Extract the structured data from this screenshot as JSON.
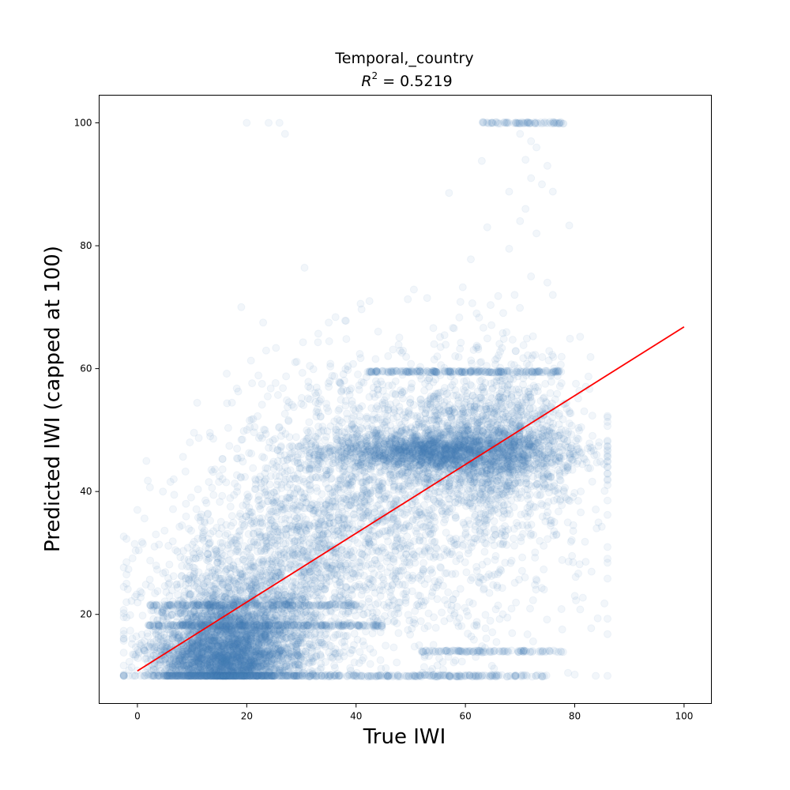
{
  "chart_data": {
    "type": "scatter",
    "title": "Temporal,_country",
    "subtitle_prefix": "R",
    "subtitle_exp": "2",
    "subtitle_value": " = 0.5219",
    "xlabel": "True IWI",
    "ylabel": "Predicted IWI (capped at 100)",
    "xlim": [
      -7,
      105
    ],
    "ylim": [
      5.5,
      104.5
    ],
    "xticks": [
      0,
      20,
      40,
      60,
      80,
      100
    ],
    "yticks": [
      20,
      40,
      60,
      80,
      100
    ],
    "grid": false,
    "legend": "none",
    "point_color": "#4682b4",
    "point_alpha": 0.07,
    "fit_line": {
      "color": "#ff0000",
      "x": [
        0,
        100
      ],
      "y": [
        10.8,
        66.8
      ]
    },
    "point_clusters": [
      {
        "x_center": 17,
        "x_spread": 7,
        "y_center": 15,
        "y_spread": 4.5,
        "count": 2500
      },
      {
        "x_center": 14,
        "x_spread": 6,
        "y_center": 12,
        "y_spread": 2,
        "count": 900
      },
      {
        "x_center": 20,
        "x_spread": 9,
        "y_center": 22,
        "y_spread": 7,
        "count": 900
      },
      {
        "x_center": 32,
        "x_spread": 10,
        "y_center": 33,
        "y_spread": 10,
        "count": 1000
      },
      {
        "x_center": 55,
        "x_spread": 10,
        "y_center": 46.5,
        "y_spread": 1.5,
        "count": 1400
      },
      {
        "x_center": 60,
        "x_spread": 11,
        "y_center": 47,
        "y_spread": 5,
        "count": 1400
      },
      {
        "x_center": 48,
        "x_spread": 14,
        "y_center": 40,
        "y_spread": 12,
        "count": 1200
      },
      {
        "x_center": 68,
        "x_spread": 6,
        "y_center": 48,
        "y_spread": 8,
        "count": 600
      },
      {
        "x_center": 45,
        "x_spread": 18,
        "y_center": 25,
        "y_spread": 10,
        "count": 400
      }
    ],
    "horizontal_bands": [
      {
        "x_min": 2,
        "x_max": 45,
        "y": 18.2,
        "count": 300
      },
      {
        "x_min": 2,
        "x_max": 40,
        "y": 21.5,
        "count": 200
      },
      {
        "x_min": 42,
        "x_max": 78,
        "y": 59.5,
        "count": 250
      },
      {
        "x_min": 52,
        "x_max": 78,
        "y": 14,
        "count": 120
      },
      {
        "x_min": 30,
        "x_max": 75,
        "y": 10,
        "count": 200
      },
      {
        "x_min": 63,
        "x_max": 78,
        "y": 100,
        "count": 80
      }
    ],
    "outlier_points": [
      [
        20,
        100
      ],
      [
        24,
        100
      ],
      [
        26,
        100
      ],
      [
        27,
        98.2
      ],
      [
        70,
        98.2
      ],
      [
        72,
        97
      ],
      [
        73,
        96
      ],
      [
        71,
        94
      ],
      [
        63,
        93.8
      ],
      [
        75,
        93
      ],
      [
        72,
        91
      ],
      [
        74,
        90
      ],
      [
        76,
        88.8
      ],
      [
        57,
        88.6
      ],
      [
        68,
        88.8
      ],
      [
        71,
        86
      ],
      [
        79,
        83.3
      ],
      [
        64,
        83
      ],
      [
        70,
        84
      ],
      [
        73,
        82
      ],
      [
        68,
        79.5
      ],
      [
        61,
        77.8
      ],
      [
        72,
        75
      ],
      [
        75,
        74
      ],
      [
        69,
        72
      ],
      [
        76,
        72
      ],
      [
        53,
        71.5
      ],
      [
        66,
        71.8
      ],
      [
        19,
        70
      ],
      [
        23,
        67.5
      ],
      [
        38,
        67.8
      ],
      [
        35,
        67.5
      ],
      [
        84,
        34
      ],
      [
        86,
        52.3
      ],
      [
        81,
        20.8
      ],
      [
        80,
        10.2
      ],
      [
        -2,
        32.3
      ],
      [
        -2,
        28.5
      ],
      [
        -2,
        26.5
      ],
      [
        -2,
        25
      ],
      [
        0,
        37
      ],
      [
        -2,
        22
      ],
      [
        -2,
        19.5
      ]
    ]
  }
}
